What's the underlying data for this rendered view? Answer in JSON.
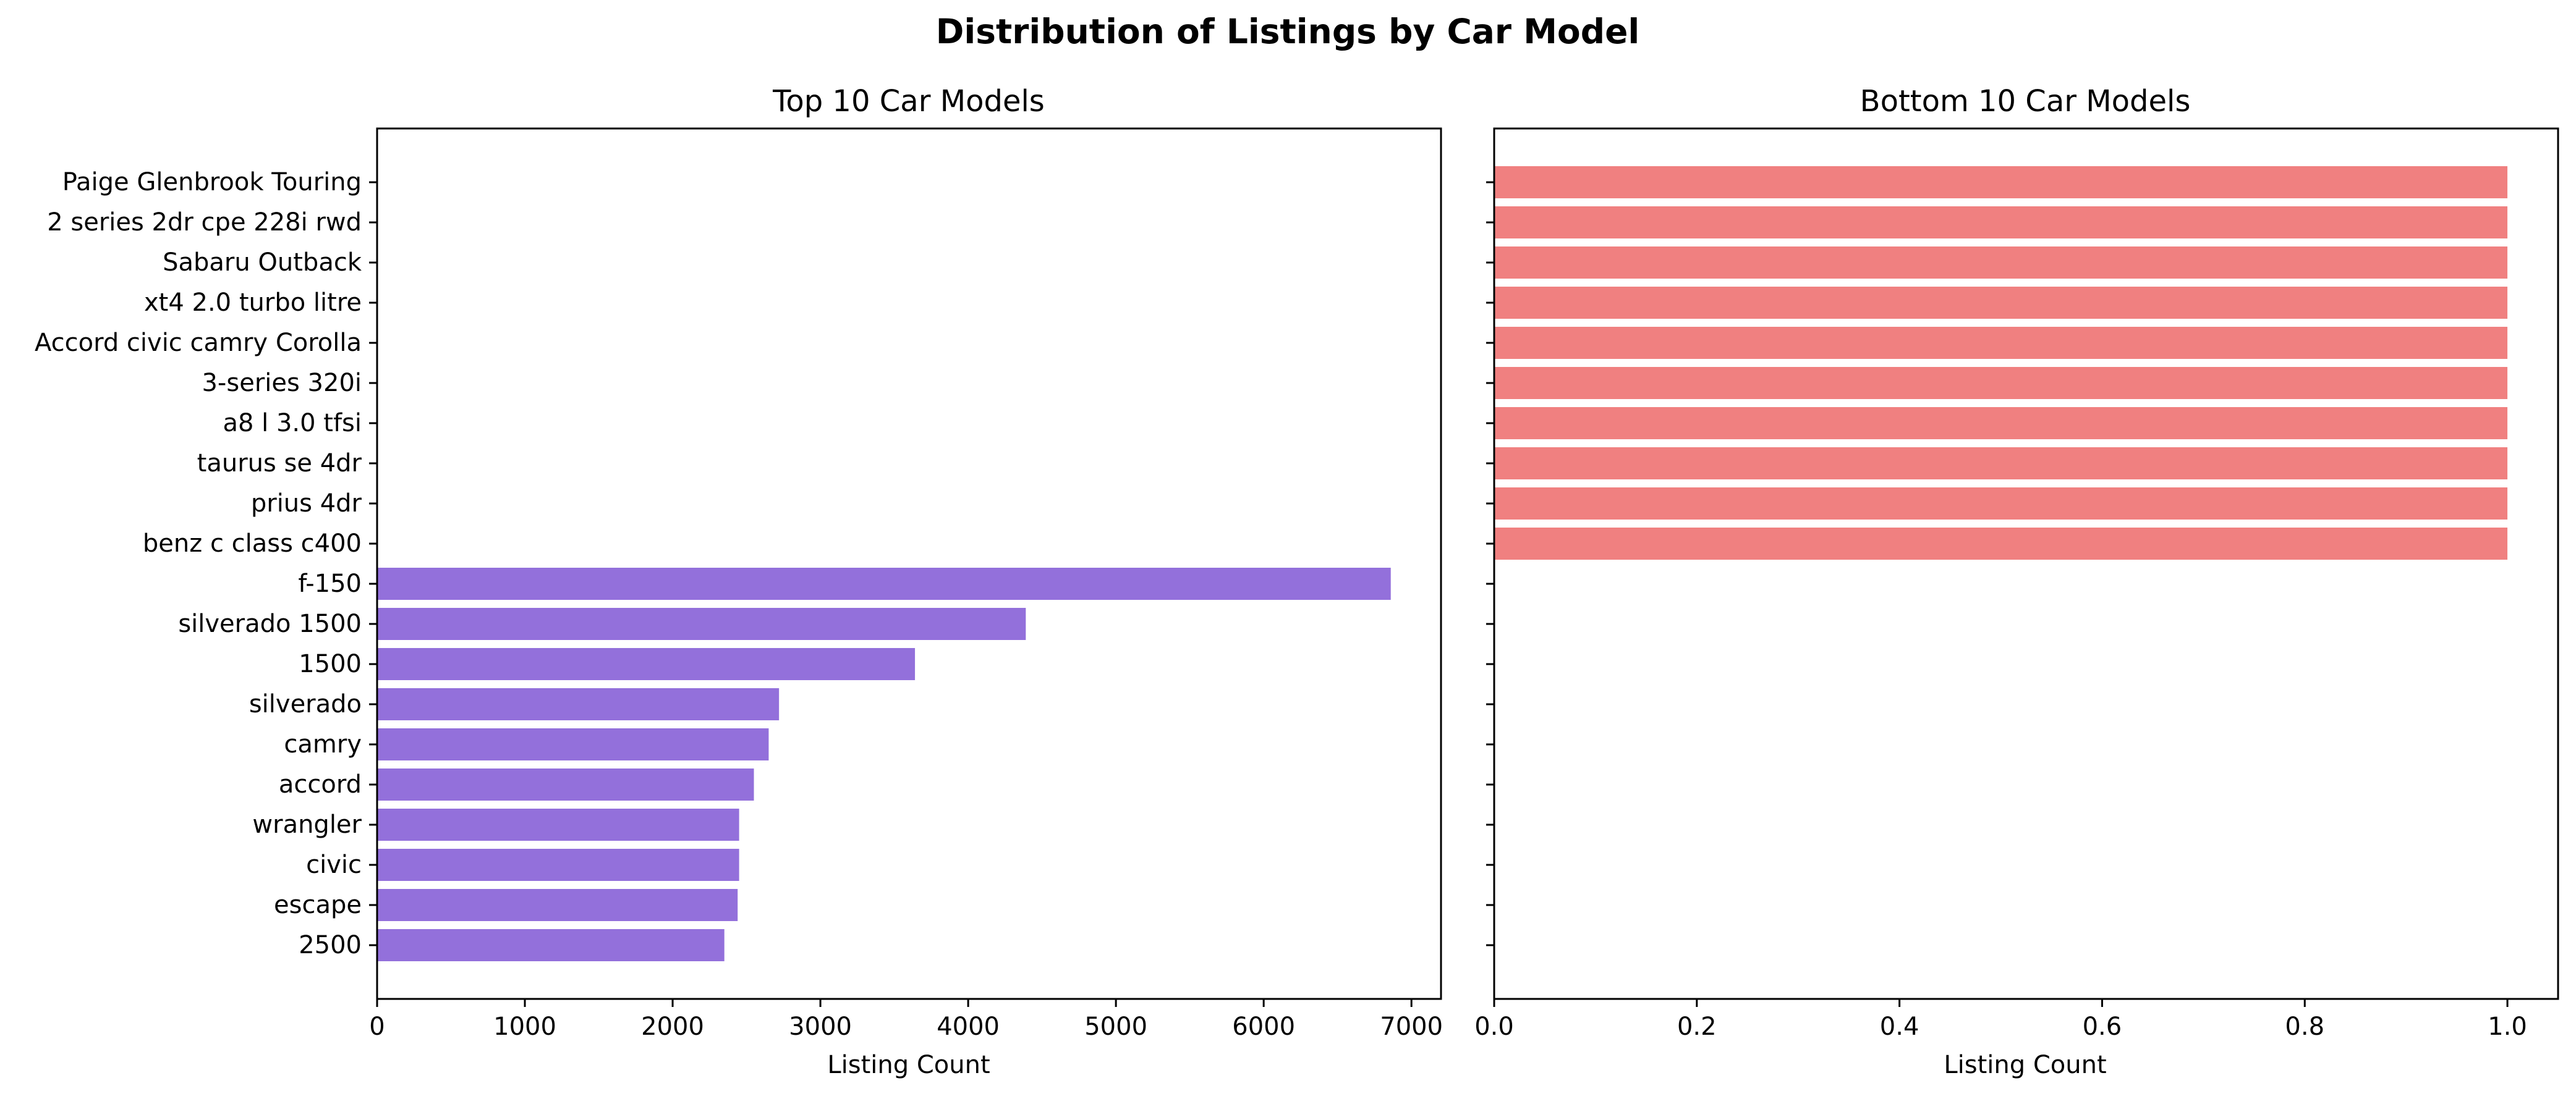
{
  "figure": {
    "title": "Distribution of Listings by Car Model"
  },
  "chart_data": [
    {
      "type": "bar",
      "orientation": "horizontal",
      "title": "Top 10 Car Models",
      "xlabel": "Listing Count",
      "ylabel": "",
      "color": "#9370DB",
      "xlim": [
        0,
        7200
      ],
      "xticks": [
        0,
        1000,
        2000,
        3000,
        4000,
        5000,
        6000,
        7000
      ],
      "categories": [
        "Paige Glenbrook Touring",
        "2 series 2dr cpe 228i rwd",
        "Sabaru Outback",
        "xt4 2.0 turbo litre",
        "Accord civic camry Corolla",
        "3-series 320i",
        "a8 l 3.0 tfsi",
        "taurus se 4dr",
        "prius 4dr",
        "benz c class c400",
        "f-150",
        "silverado 1500",
        "1500",
        "silverado",
        "camry",
        "accord",
        "wrangler",
        "civic",
        "escape",
        "2500"
      ],
      "values": [
        null,
        null,
        null,
        null,
        null,
        null,
        null,
        null,
        null,
        null,
        6860,
        4390,
        3640,
        2720,
        2650,
        2550,
        2450,
        2450,
        2440,
        2350
      ],
      "show_ytick_labels": true,
      "grid": false
    },
    {
      "type": "bar",
      "orientation": "horizontal",
      "title": "Bottom 10 Car Models",
      "xlabel": "Listing Count",
      "ylabel": "",
      "color": "#F08080",
      "xlim": [
        0,
        1.05
      ],
      "xticks": [
        0.0,
        0.2,
        0.4,
        0.6,
        0.8,
        1.0
      ],
      "categories": [
        "Paige Glenbrook Touring",
        "2 series 2dr cpe 228i rwd",
        "Sabaru Outback",
        "xt4 2.0 turbo litre",
        "Accord civic camry Corolla",
        "3-series 320i",
        "a8 l 3.0 tfsi",
        "taurus se 4dr",
        "prius 4dr",
        "benz c class c400",
        "f-150",
        "silverado 1500",
        "1500",
        "silverado",
        "camry",
        "accord",
        "wrangler",
        "civic",
        "escape",
        "2500"
      ],
      "values": [
        1,
        1,
        1,
        1,
        1,
        1,
        1,
        1,
        1,
        1,
        null,
        null,
        null,
        null,
        null,
        null,
        null,
        null,
        null,
        null
      ],
      "show_ytick_labels": false,
      "grid": false
    }
  ]
}
